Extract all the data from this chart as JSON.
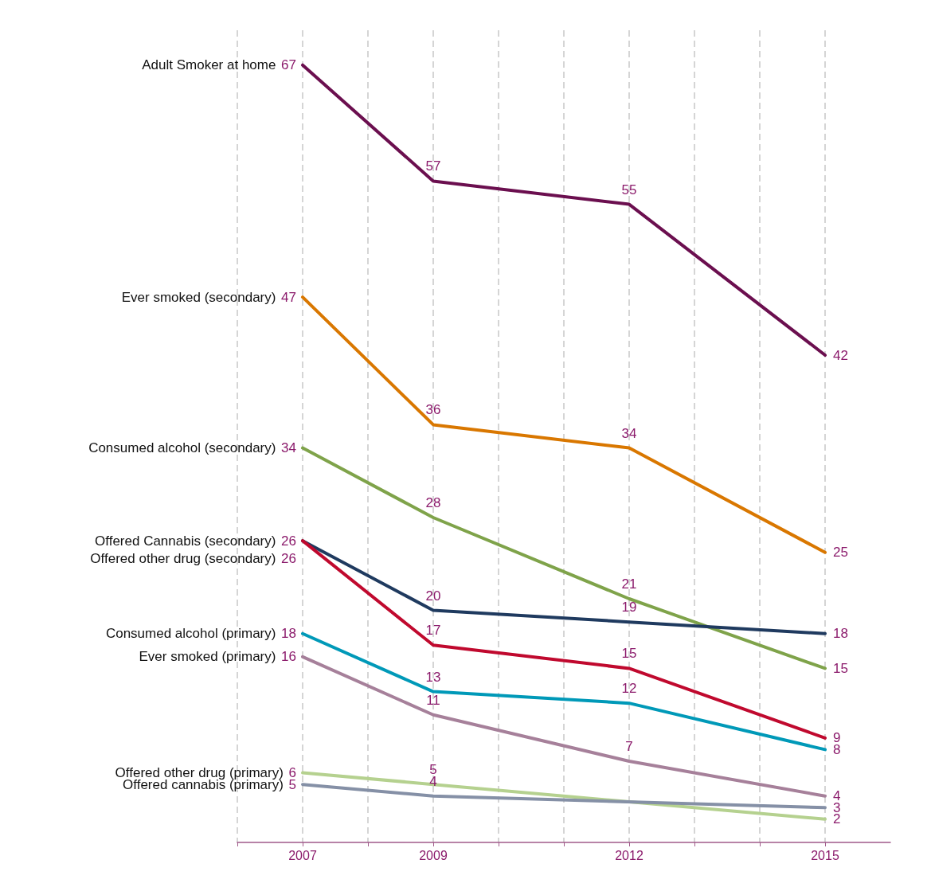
{
  "chart_data": {
    "type": "line",
    "x": [
      2007,
      2009,
      2012,
      2015
    ],
    "xlim": [
      2006,
      2016
    ],
    "xticks": [
      {
        "value": 2006,
        "label": null
      },
      2007,
      {
        "value": 2008,
        "label": null
      },
      2009,
      {
        "value": 2010,
        "label": null
      },
      {
        "value": 2011,
        "label": null
      },
      2012,
      {
        "value": 2013,
        "label": null
      },
      {
        "value": 2014,
        "label": null
      },
      2015
    ],
    "tick_labels": "x",
    "grid": true,
    "legend": false,
    "marker": "none",
    "line_style": "solid",
    "data_labels": true,
    "series": [
      {
        "name": "Adult Smoker at home",
        "color": "#6b0f4f",
        "values": [
          67,
          57,
          55,
          42
        ]
      },
      {
        "name": "Ever smoked (secondary)",
        "color": "#d97700",
        "values": [
          47,
          36,
          34,
          25
        ]
      },
      {
        "name": "Consumed alcohol (secondary)",
        "color": "#7fa34a",
        "values": [
          34,
          28,
          21,
          15
        ]
      },
      {
        "name": "Offered Cannabis (secondary)",
        "color": "#1f3a5f",
        "values": [
          26,
          20,
          19,
          18
        ]
      },
      {
        "name": "Offered other drug (secondary)",
        "color": "#c0092e",
        "values": [
          26,
          17,
          15,
          9
        ]
      },
      {
        "name": "Consumed alcohol (primary)",
        "color": "#0099b8",
        "values": [
          18,
          13,
          12,
          8
        ]
      },
      {
        "name": "Ever smoked (primary)",
        "color": "#a6809a",
        "values": [
          16,
          11,
          7,
          4
        ]
      },
      {
        "name": "Offered other drug (primary)",
        "color": "#b5d18f",
        "x": [
          2007,
          2009,
          2015
        ],
        "values": [
          6,
          5,
          2
        ]
      },
      {
        "name": "Offered cannabis (primary)",
        "color": "#8590a6",
        "x": [
          2007,
          2009,
          2015
        ],
        "values": [
          5,
          4,
          3
        ]
      }
    ]
  }
}
